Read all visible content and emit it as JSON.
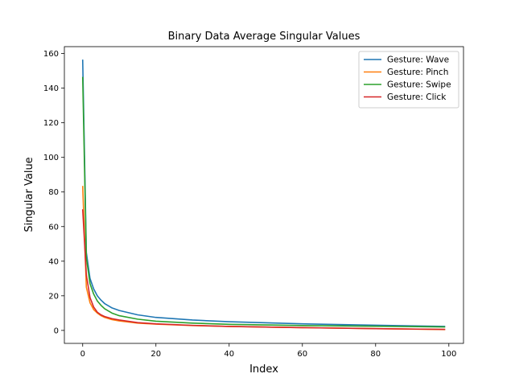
{
  "chart_data": {
    "type": "line",
    "title": "Binary Data Average Singular Values",
    "xlabel": "Index",
    "ylabel": "Singular Value",
    "xlim": [
      -5,
      104
    ],
    "ylim": [
      -7.5,
      164
    ],
    "xticks": [
      0,
      20,
      40,
      60,
      80,
      100
    ],
    "yticks": [
      0,
      20,
      40,
      60,
      80,
      100,
      120,
      140,
      160
    ],
    "grid": false,
    "legend": "top-right",
    "series": [
      {
        "name": "Gesture: Wave",
        "color": "#1f77b4",
        "x": [
          0,
          1,
          2,
          3,
          4,
          5,
          6,
          8,
          10,
          15,
          20,
          30,
          40,
          60,
          80,
          99
        ],
        "y": [
          156.5,
          45,
          30,
          24,
          20,
          17.5,
          15.5,
          13,
          11.5,
          9,
          7.5,
          6,
          5,
          3.8,
          3,
          2.3
        ]
      },
      {
        "name": "Gesture: Pinch",
        "color": "#ff7f0e",
        "x": [
          0,
          1,
          2,
          3,
          4,
          5,
          6,
          8,
          10,
          15,
          20,
          30,
          40,
          60,
          80,
          99
        ],
        "y": [
          83.5,
          25,
          16,
          12,
          10,
          8.5,
          7.5,
          6.2,
          5.5,
          4.2,
          3.6,
          2.8,
          2.3,
          1.6,
          1,
          0.5
        ]
      },
      {
        "name": "Gesture: Swipe",
        "color": "#2ca02c",
        "x": [
          0,
          1,
          2,
          3,
          4,
          5,
          6,
          8,
          10,
          15,
          20,
          30,
          40,
          60,
          80,
          99
        ],
        "y": [
          146.5,
          42,
          27,
          21,
          17,
          14.5,
          12.5,
          10,
          8.5,
          6.5,
          5.3,
          4.2,
          3.5,
          2.8,
          2.4,
          2
        ]
      },
      {
        "name": "Gesture: Click",
        "color": "#d62728",
        "x": [
          0,
          1,
          2,
          3,
          4,
          5,
          6,
          8,
          10,
          15,
          20,
          30,
          40,
          60,
          80,
          99
        ],
        "y": [
          70,
          32,
          19,
          13.5,
          10.5,
          9,
          8,
          6.8,
          6,
          4.5,
          3.8,
          2.9,
          2.3,
          1.6,
          1,
          0.6
        ]
      }
    ]
  }
}
